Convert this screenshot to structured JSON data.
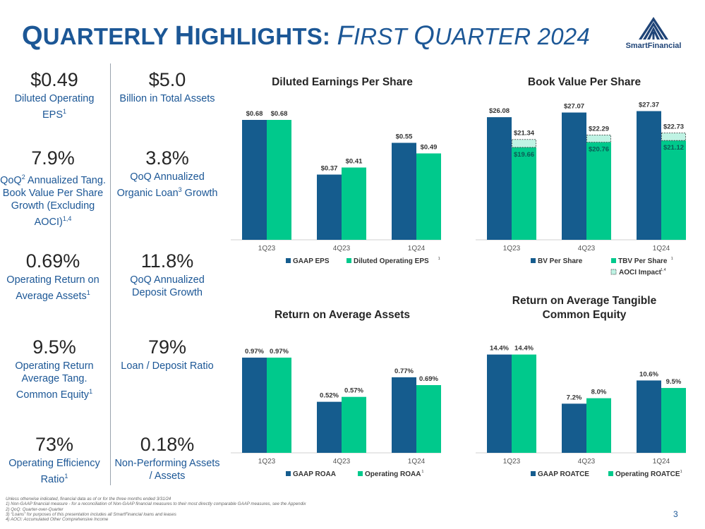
{
  "title": {
    "q": "Q",
    "uarterly": "UARTERLY",
    "h": "H",
    "ighlights": "IGHLIGHTS:",
    "f": "F",
    "irst": "IRST",
    "q2": "Q",
    "uarter": "UARTER",
    "year": "2024"
  },
  "logo": {
    "text": "SmartFinancial"
  },
  "kpis_left": [
    {
      "value": "$0.49",
      "label": "Diluted Operating EPS",
      "sup": "1"
    },
    {
      "value": "7.9%",
      "label_parts": [
        "QoQ",
        "2",
        " Annualized Tang. Book Value Per Share Growth (Excluding AOCI)",
        "1,4"
      ]
    },
    {
      "value": "0.69%",
      "label": "Operating Return on Average Assets",
      "sup": "1"
    },
    {
      "value": "9.5%",
      "label": "Operating Return Average Tang. Common Equity",
      "sup": "1"
    },
    {
      "value": "73%",
      "label": "Operating Efficiency Ratio",
      "sup": "1"
    }
  ],
  "kpis_right": [
    {
      "value": "$5.0",
      "label": "Billion in Total Assets"
    },
    {
      "value": "3.8%",
      "label": "QoQ Annualized Organic Loan",
      "sup": "3",
      "label_tail": " Growth"
    },
    {
      "value": "11.8%",
      "label": "QoQ Annualized Deposit Growth"
    },
    {
      "value": "79%",
      "label": "Loan / Deposit Ratio"
    },
    {
      "value": "0.18%",
      "label": "Non-Performing Assets / Assets"
    }
  ],
  "colors": {
    "navy": "#155c8e",
    "green": "#00c98c",
    "aoci": "#bff3e4",
    "title": "#1c5796"
  },
  "chart_data": [
    {
      "id": "eps",
      "type": "bar",
      "title": "Diluted Earnings Per Share",
      "categories": [
        "1Q23",
        "4Q23",
        "1Q24"
      ],
      "series": [
        {
          "name": "GAAP EPS",
          "values": [
            0.68,
            0.37,
            0.55
          ],
          "labels": [
            "$0.68",
            "$0.37",
            "$0.55"
          ]
        },
        {
          "name": "Diluted Operating EPS",
          "sup": "1",
          "values": [
            0.68,
            0.41,
            0.49
          ],
          "labels": [
            "$0.68",
            "$0.41",
            "$0.49"
          ]
        }
      ],
      "ylim": [
        0,
        0.8
      ]
    },
    {
      "id": "bv",
      "type": "bar",
      "title": "Book Value Per Share",
      "categories": [
        "1Q23",
        "4Q23",
        "1Q24"
      ],
      "series": [
        {
          "name": "BV Per Share",
          "values": [
            26.08,
            27.07,
            27.37
          ],
          "labels": [
            "$26.08",
            "$27.07",
            "$27.37"
          ]
        },
        {
          "name": "TBV Per Share",
          "sup": "1",
          "values": [
            19.66,
            20.76,
            21.12
          ],
          "labels": [
            "$19.66",
            "$20.76",
            "$21.12"
          ]
        },
        {
          "name": "AOCI Impact",
          "sup": "1,4",
          "stack_top": [
            21.34,
            22.29,
            22.73
          ],
          "labels": [
            "$21.34",
            "$22.29",
            "$22.73"
          ]
        }
      ],
      "ylim": [
        0,
        30
      ]
    },
    {
      "id": "roaa",
      "type": "bar",
      "title": "Return on Average Assets",
      "categories": [
        "1Q23",
        "4Q23",
        "1Q24"
      ],
      "series": [
        {
          "name": "GAAP ROAA",
          "values": [
            0.97,
            0.52,
            0.77
          ],
          "labels": [
            "0.97%",
            "0.52%",
            "0.77%"
          ]
        },
        {
          "name": "Operating ROAA",
          "sup": "1",
          "values": [
            0.97,
            0.57,
            0.69
          ],
          "labels": [
            "0.97%",
            "0.57%",
            "0.69%"
          ]
        }
      ],
      "ylim": [
        0,
        1.15
      ]
    },
    {
      "id": "roatce",
      "type": "bar",
      "title": "Return on Average Tangible Common Equity",
      "title_lines": [
        "Return on Average Tangible",
        "Common Equity"
      ],
      "categories": [
        "1Q23",
        "4Q23",
        "1Q24"
      ],
      "series": [
        {
          "name": "GAAP ROATCE",
          "values": [
            14.4,
            7.2,
            10.6
          ],
          "labels": [
            "14.4%",
            "7.2%",
            "10.6%"
          ]
        },
        {
          "name": "Operating ROATCE",
          "sup": "1",
          "values": [
            14.4,
            8.0,
            9.5
          ],
          "labels": [
            "14.4%",
            "8.0%",
            "9.5%"
          ]
        }
      ],
      "ylim": [
        0,
        15.5
      ]
    }
  ],
  "footnotes": [
    "Unless otherwise indicated, financial data as of or for the three months ended 3/31/24",
    "1)    Non-GAAP financial measure - for a reconciliation of Non-GAAP financial measures to their most directly comparable GAAP measures, see the Appendix",
    "2)    QoQ: Quarter-over-Quarter",
    "3)    “Loans” for purposes of this presentation includes all SmartFinancial loans and leases",
    "4)    AOCI: Accumulated Other Comprehensive Income"
  ],
  "page_number": "3"
}
